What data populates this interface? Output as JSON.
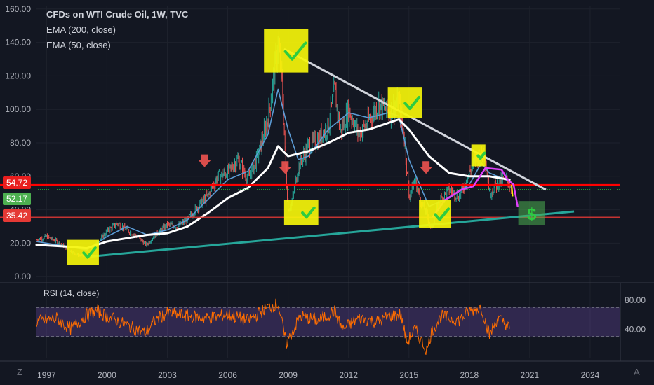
{
  "legend": {
    "title": "CFDs on WTI Crude Oil, 1W, TVC",
    "ema200": "EMA (200, close)",
    "ema50": "EMA (50, close)"
  },
  "rsi_legend": "RSI (14, close)",
  "corners": {
    "left": "Z",
    "right": "A"
  },
  "price_tags": [
    {
      "label": "54.72",
      "color": "#e91e1e"
    },
    {
      "label": "52.17",
      "color": "#4caf50"
    },
    {
      "label": "35.42",
      "color": "#e53935"
    }
  ],
  "colors": {
    "background": "#131722",
    "price_bars_up": "#26a69a",
    "price_bars_down": "#ef5350",
    "ema200": "#ffffff",
    "ema50": "#5b9bd5",
    "rsi": "#ff6d00",
    "resistance_line": "#ff0000",
    "support_line": "#e53935",
    "trend_up": "#26a69a",
    "trend_down": "#d1d4dc",
    "highlight": "#f5f50a",
    "check": "#2ecc40",
    "projection": "#e040fb"
  },
  "chart_data": [
    {
      "type": "line",
      "title": "CFDs on WTI Crude Oil, 1W, TVC",
      "x_ticks": [
        "1997",
        "2000",
        "2003",
        "2006",
        "2009",
        "2012",
        "2015",
        "2018",
        "2021",
        "2024"
      ],
      "y_ticks": [
        "0.00",
        "20.00",
        "40.00",
        "60.00",
        "80.00",
        "100.00",
        "120.00",
        "140.00",
        "160.00"
      ],
      "ylim": [
        -2,
        162
      ],
      "xlim": [
        1996.5,
        2025.5
      ],
      "series": [
        {
          "role": "price",
          "x": [
            1996.5,
            1997.0,
            1997.5,
            1998.0,
            1998.5,
            1999.0,
            1999.5,
            2000.0,
            2000.5,
            2001.0,
            2001.5,
            2001.95,
            2002.5,
            2003.0,
            2003.5,
            2004.0,
            2004.5,
            2005.0,
            2005.5,
            2006.0,
            2006.5,
            2007.0,
            2007.5,
            2008.0,
            2008.3,
            2008.5,
            2008.7,
            2008.9,
            2009.0,
            2009.2,
            2009.5,
            2010.0,
            2010.5,
            2011.0,
            2011.3,
            2011.6,
            2012.0,
            2012.5,
            2013.0,
            2013.5,
            2014.0,
            2014.5,
            2014.8,
            2015.0,
            2015.3,
            2015.6,
            2015.9,
            2016.1,
            2016.5,
            2017.0,
            2017.5,
            2018.0,
            2018.3,
            2018.75,
            2019.0,
            2019.5,
            2019.9,
            2020.0,
            2020.1
          ],
          "values": [
            22,
            24,
            21,
            17,
            13,
            12,
            20,
            27,
            32,
            28,
            24,
            19,
            26,
            31,
            30,
            34,
            42,
            48,
            60,
            62,
            70,
            58,
            72,
            95,
            120,
            140,
            115,
            60,
            40,
            45,
            65,
            78,
            82,
            90,
            112,
            86,
            100,
            85,
            93,
            103,
            98,
            104,
            80,
            48,
            58,
            45,
            37,
            28,
            45,
            52,
            48,
            62,
            70,
            76,
            50,
            57,
            58,
            55,
            52
          ]
        },
        {
          "role": "ema200",
          "x": [
            1996.5,
            1998.0,
            1999.0,
            2000.0,
            2001.0,
            2002.0,
            2003.0,
            2004.0,
            2005.0,
            2006.0,
            2007.0,
            2008.0,
            2008.5,
            2009.0,
            2010.0,
            2011.0,
            2012.0,
            2013.0,
            2014.0,
            2014.5,
            2015.0,
            2016.0,
            2017.0,
            2018.0,
            2019.0,
            2020.0
          ],
          "values": [
            19,
            18,
            17,
            21,
            23,
            25,
            26,
            30,
            38,
            47,
            53,
            65,
            78,
            72,
            75,
            80,
            86,
            88,
            92,
            94,
            88,
            72,
            62,
            60,
            60,
            58
          ]
        },
        {
          "role": "ema50",
          "x": [
            1996.5,
            1998.0,
            1999.0,
            2000.0,
            2001.0,
            2002.0,
            2003.0,
            2004.0,
            2005.0,
            2006.0,
            2007.0,
            2008.0,
            2008.5,
            2009.0,
            2009.5,
            2010.0,
            2011.0,
            2012.0,
            2013.0,
            2014.0,
            2014.5,
            2015.0,
            2016.0,
            2017.0,
            2018.0,
            2018.6,
            2019.0,
            2020.0
          ],
          "values": [
            21,
            18,
            16,
            24,
            30,
            25,
            28,
            34,
            46,
            58,
            63,
            85,
            112,
            88,
            70,
            72,
            88,
            98,
            95,
            98,
            96,
            70,
            42,
            47,
            55,
            68,
            62,
            57
          ]
        },
        {
          "role": "projection",
          "x": [
            2016.2,
            2016.8,
            2017.6,
            2018.2,
            2018.8,
            2019.6,
            2019.9,
            2020.2,
            2020.4
          ],
          "values": [
            36,
            46,
            52,
            54,
            65,
            64,
            58,
            55,
            42
          ]
        }
      ]
    },
    {
      "type": "line",
      "title": "RSI (14, close)",
      "y_ticks": [
        "80.00",
        "40.00"
      ],
      "ylim": [
        0,
        100
      ],
      "series": [
        {
          "role": "rsi",
          "x": [
            1996.5,
            1997.5,
            1998.2,
            1999.0,
            1999.5,
            2000.0,
            2001.0,
            2001.9,
            2002.5,
            2003.0,
            2004.0,
            2005.0,
            2006.0,
            2007.0,
            2008.0,
            2008.5,
            2008.9,
            2009.1,
            2009.6,
            2010.5,
            2011.3,
            2011.7,
            2012.5,
            2013.5,
            2014.0,
            2014.6,
            2014.9,
            2015.3,
            2015.9,
            2016.1,
            2016.6,
            2017.5,
            2018.0,
            2018.6,
            2019.0,
            2019.4,
            2019.8,
            2020.0
          ],
          "values": [
            50,
            55,
            40,
            60,
            65,
            58,
            45,
            35,
            55,
            62,
            58,
            55,
            60,
            52,
            70,
            75,
            20,
            30,
            58,
            52,
            65,
            40,
            55,
            50,
            58,
            60,
            22,
            40,
            10,
            35,
            58,
            52,
            65,
            70,
            32,
            55,
            48,
            40
          ]
        }
      ]
    }
  ]
}
